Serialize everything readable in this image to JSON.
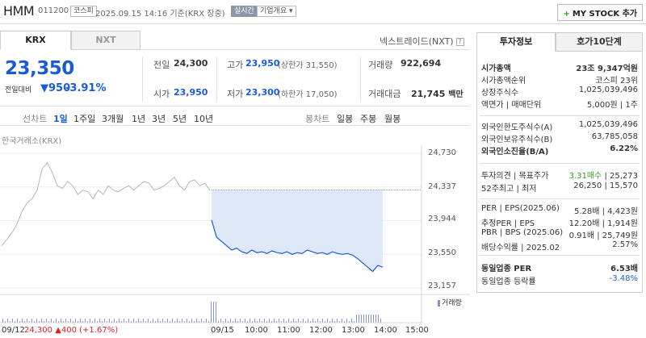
{
  "header": {
    "name": "HMM",
    "code": "011200",
    "market_tag": "코스피",
    "time": "2025.09.15 14:16 기준(KRX 장중)",
    "realtime_tag": "실시간",
    "overview": "기업개요",
    "overview_arrow": "▾",
    "mystock_plus": "+",
    "mystock": "MY STOCK 추가"
  },
  "tabs": {
    "krx": "KRX",
    "nxt": "NXT",
    "nxt_link": "넥스트레이드(NXT)"
  },
  "quote": {
    "price": "23,350",
    "diff_label": "전일대비",
    "diff_arrow": "▼",
    "diff_value": "950",
    "diff_pct": "-3.91%",
    "prev_label": "전일",
    "prev_value": "24,300",
    "high_label": "고가",
    "high_value": "23,950",
    "upper_limit": "(상한가 31,550)",
    "volume_label": "거래량",
    "volume_value": "922,694",
    "open_label": "시가",
    "open_value": "23,950",
    "low_label": "저가",
    "low_value": "23,300",
    "lower_limit": "(하한가 17,050)",
    "amount_label": "거래대금",
    "amount_value": "21,745",
    "amount_unit": "백만"
  },
  "periods": {
    "line_label": "선차트",
    "line_items": [
      "1일",
      "1주일",
      "3개월",
      "1년",
      "3년",
      "5년",
      "10년"
    ],
    "active": "1일",
    "candle_label": "봉차트",
    "candle_items": [
      "일봉",
      "주봉",
      "월봉"
    ]
  },
  "chart_data": {
    "type": "line",
    "source": "한국거래소(KRX)",
    "y_ticks": [
      "24,730",
      "24,337",
      "23,944",
      "23,550",
      "23,157"
    ],
    "ylim": [
      23157,
      24730
    ],
    "x_ticks": [
      "09/15",
      "10:00",
      "11:00",
      "12:00",
      "13:00",
      "14:00",
      "15:00"
    ],
    "prev_day_label": "09/12",
    "prev_day_price": "24,300",
    "prev_day_change": "▲400 (+1.67%)",
    "volume_legend": "거래량",
    "prev_close": 24300,
    "prev_day_series": [
      23650,
      23720,
      23800,
      23900,
      24050,
      24150,
      24200,
      24300,
      24550,
      24620,
      24500,
      24350,
      24320,
      24400,
      24350,
      24250,
      24300,
      24280,
      24200,
      24300,
      24250,
      24350,
      24300,
      24280,
      24320,
      24350,
      24300,
      24350,
      24400,
      24380,
      24300,
      24320,
      24350,
      24400,
      24450,
      24350,
      24300,
      24400,
      24420,
      24350,
      24380,
      24300
    ],
    "today_series": [
      23950,
      23750,
      23700,
      23650,
      23600,
      23620,
      23580,
      23560,
      23600,
      23570,
      23580,
      23560,
      23590,
      23570,
      23560,
      23580,
      23550,
      23570,
      23560,
      23600,
      23580,
      23560,
      23570,
      23550,
      23580,
      23560,
      23550,
      23560,
      23540,
      23500,
      23450,
      23400,
      23350,
      23420,
      23400
    ],
    "colors": {
      "line": "#1a5bd6",
      "fill": "#dfe8f8",
      "prev_line": "#b5b5b5",
      "volume": "#8a93c8"
    }
  },
  "invest": {
    "tab_on": "투자정보",
    "tab_off": "호가10단계",
    "rows1": [
      {
        "label": "시가총액",
        "value": "23조 9,347억원",
        "bold": true
      },
      {
        "label": "시가총액순위",
        "value": "코스피 23위"
      },
      {
        "label": "상장주식수",
        "value": "1,025,039,496"
      },
      {
        "label": "액면가 | 매매단위",
        "value": "5,000원 | 1주"
      }
    ],
    "rows2": [
      {
        "label": "외국인한도주식수(A)",
        "value": "1,025,039,496"
      },
      {
        "label": "외국인보유주식수(B)",
        "value": "63,785,058"
      },
      {
        "label": "외국인소진율(B/A)",
        "value": "6.22%",
        "bold": true
      }
    ],
    "rows3": [
      {
        "label": "투자의견 | 목표주가",
        "value_green": "3.31매수",
        "value": "| 25,273"
      },
      {
        "label": "52주최고 | 최저",
        "value": "26,250 | 15,570"
      }
    ],
    "rows4": [
      {
        "label": "PER | EPS(2025.06)",
        "value": "5.28배 | 4,423원"
      },
      {
        "label": "추정PER | EPS",
        "value": "12.20배 | 1,914원"
      },
      {
        "label": "PBR | BPS (2025.06)",
        "value": "0.91배 | 25,749원"
      },
      {
        "label": "배당수익률 | 2025.02",
        "value": "2.57%"
      }
    ],
    "rows5": [
      {
        "label": "동일업종 PER",
        "value": "6.53배",
        "bold": true
      },
      {
        "label": "동일업종 등락률",
        "value": "-3.48%",
        "blue": true
      }
    ]
  }
}
